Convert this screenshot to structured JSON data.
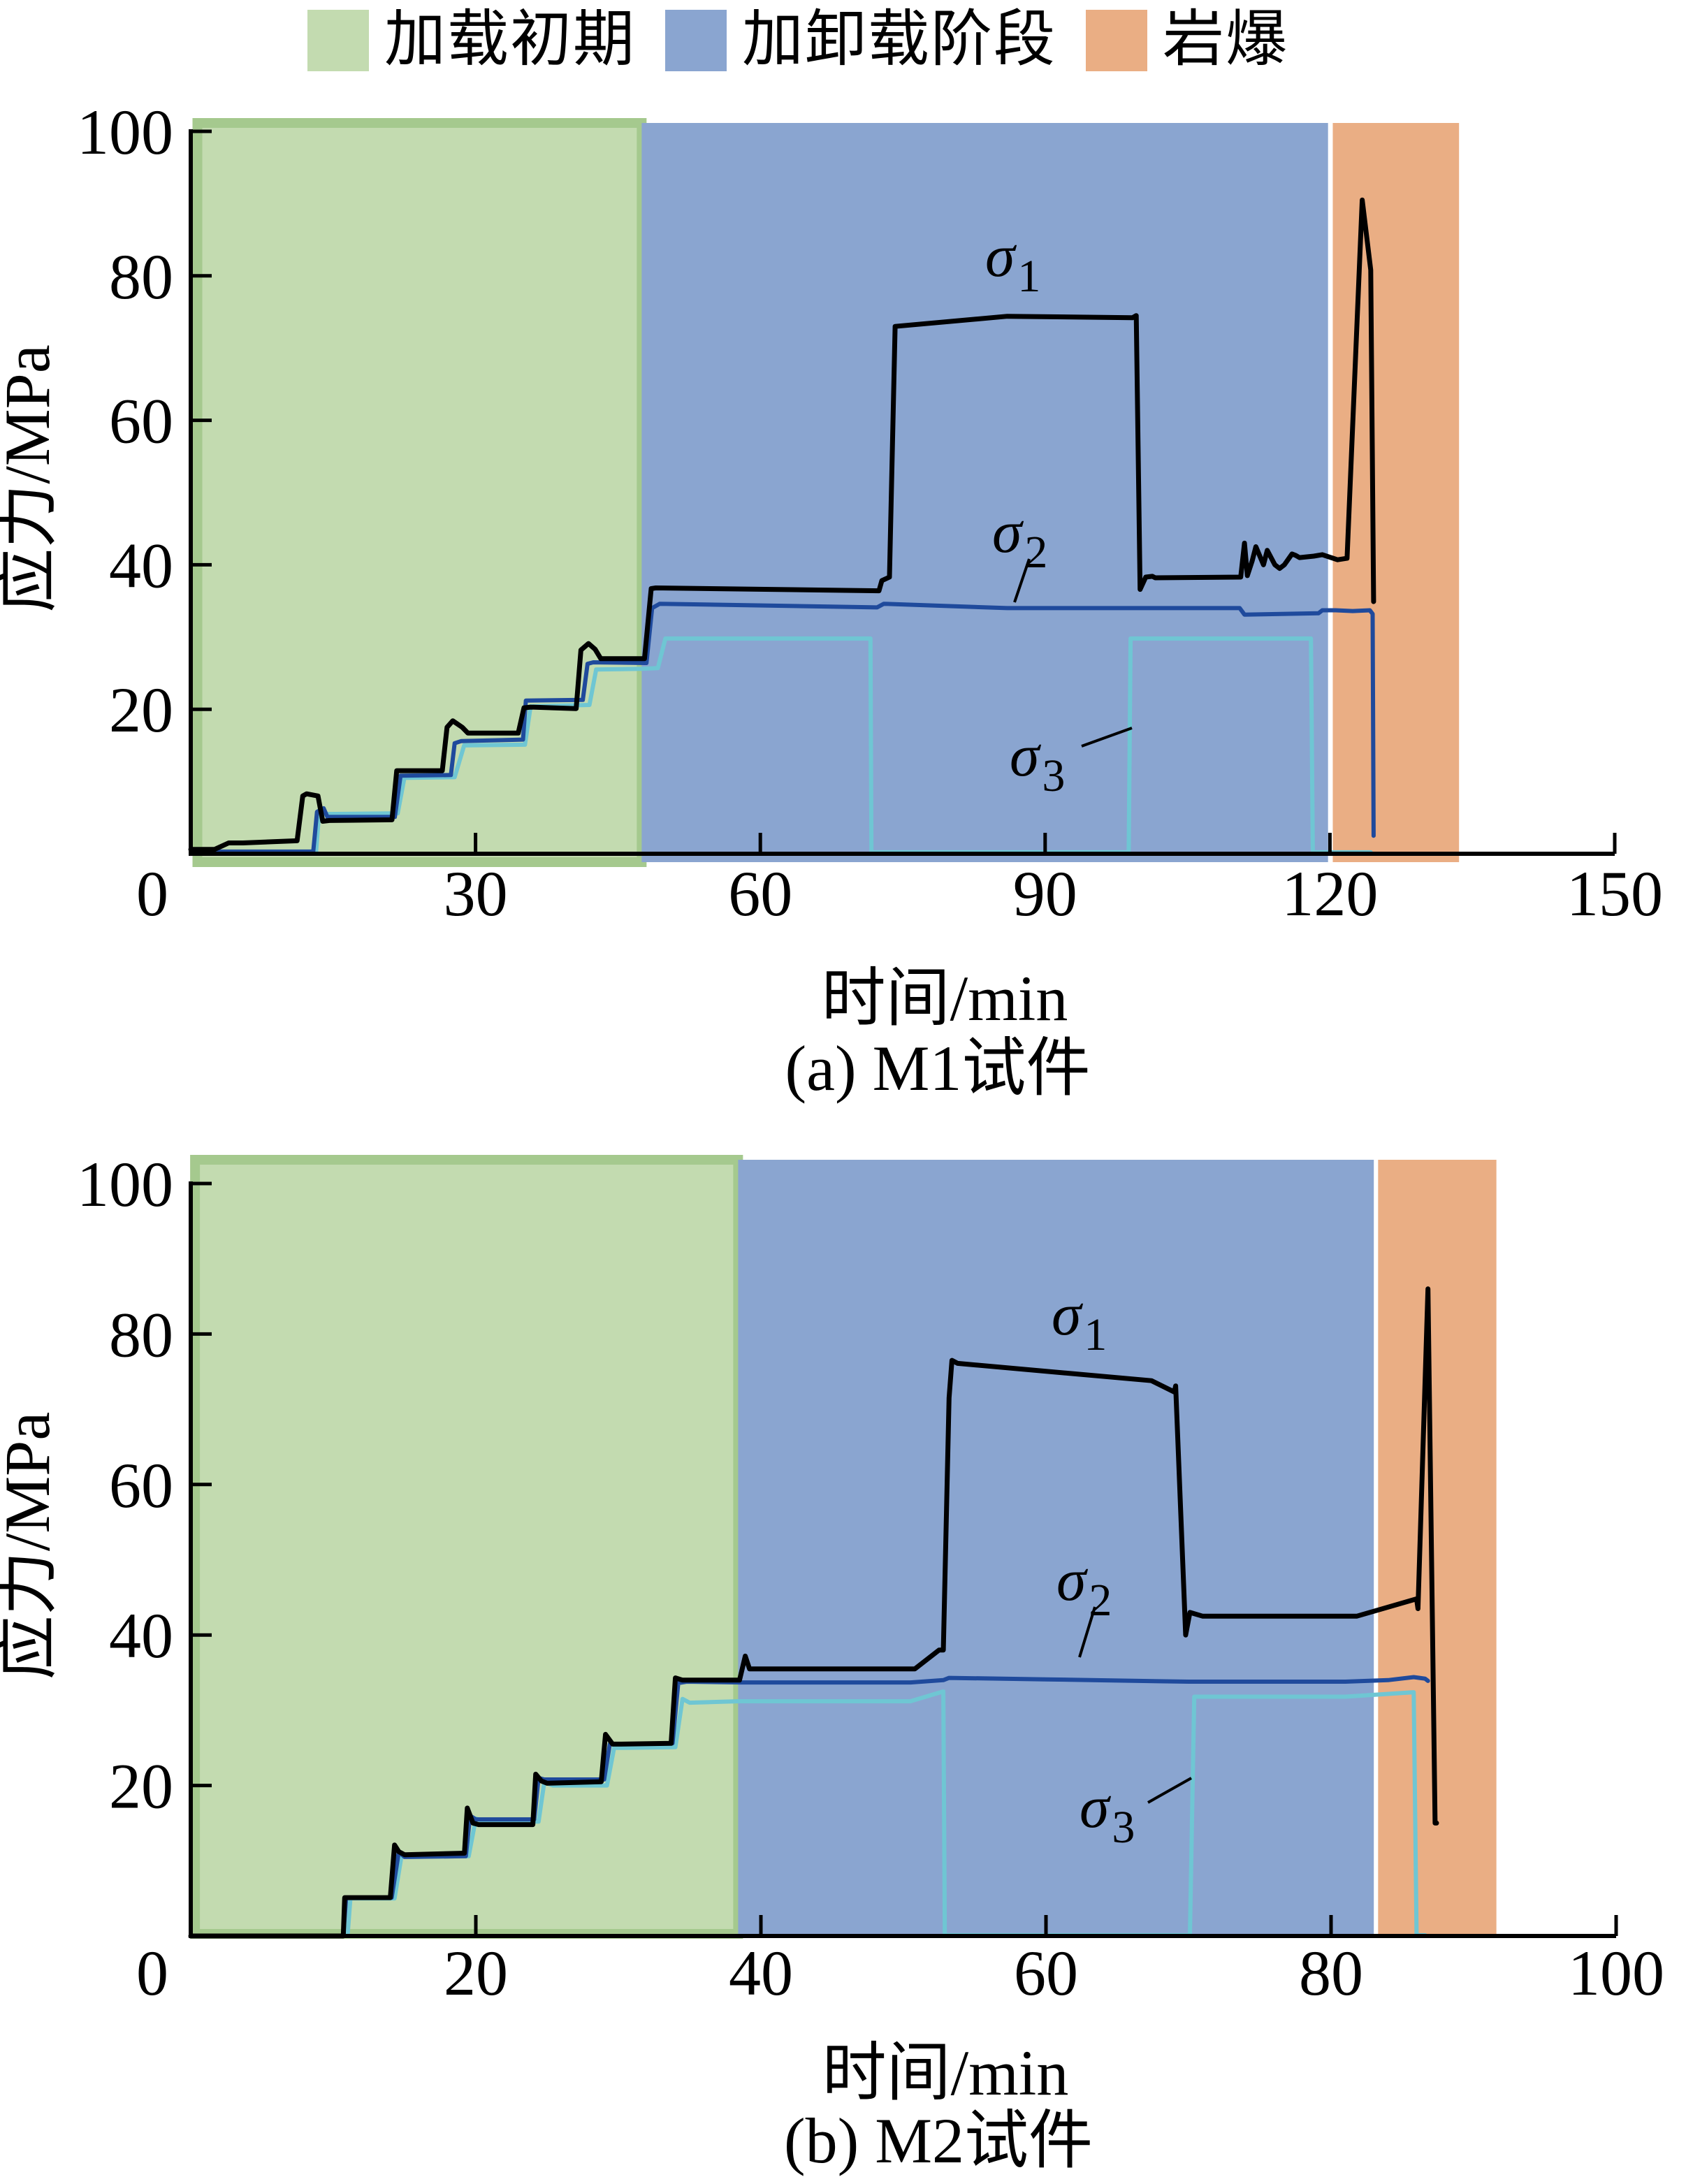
{
  "legend": {
    "items": [
      {
        "label": "加载初期",
        "color": "#c3dbb0"
      },
      {
        "label": "加卸载阶段",
        "color": "#8aa5d0"
      },
      {
        "label": "岩爆",
        "color": "#eaae84"
      }
    ]
  },
  "colors": {
    "sigma1": "#000000",
    "sigma2": "#1f4a9c",
    "sigma3": "#6fc6d3",
    "green_band_edge": "#a5c98e",
    "axis": "#000000"
  },
  "chart_data": [
    {
      "type": "line",
      "caption": "(a)  M1试件",
      "xlabel": "时间/min",
      "ylabel": "应力/MPa",
      "xlim": [
        0,
        150
      ],
      "ylim": [
        0,
        100
      ],
      "xticks": [
        "0",
        "30",
        "60",
        "90",
        "120",
        "150"
      ],
      "xtick_values": [
        0,
        30,
        60,
        90,
        120,
        150
      ],
      "yticks": [
        "20",
        "40",
        "60",
        "80",
        "100"
      ],
      "ytick_values": [
        20,
        40,
        60,
        80,
        100
      ],
      "zero_label": "0",
      "phases": [
        {
          "name": "加载初期",
          "start": 0.7,
          "end": 47.5
        },
        {
          "name": "加卸载阶段",
          "start": 47.5,
          "end": 119.8
        },
        {
          "name": "岩爆",
          "start": 120.3,
          "end": 133.6
        }
      ],
      "annotations": [
        {
          "symbol": "σ",
          "sub": "1",
          "series": "sigma1"
        },
        {
          "symbol": "σ",
          "sub": "2",
          "series": "sigma2"
        },
        {
          "symbol": "σ",
          "sub": "3",
          "series": "sigma3"
        }
      ],
      "series": [
        {
          "name": "σ1",
          "key": "sigma1",
          "x": [
            0,
            2.5,
            4,
            5.5,
            11.2,
            11.8,
            12.2,
            13.4,
            13.9,
            14.6,
            21.2,
            21.7,
            22.6,
            26.5,
            27.0,
            27.6,
            28.6,
            29.2,
            34.5,
            35.1,
            35.8,
            40.6,
            41.1,
            41.9,
            42.6,
            43.2,
            47.8,
            48.5,
            49.0,
            72.5,
            72.8,
            73.6,
            74.2,
            86,
            99.2,
            99.6,
            100.0,
            100.6,
            101.3,
            101.6,
            110.6,
            111.0,
            111.3,
            111.8,
            112.2,
            113.0,
            113.4,
            114.2,
            114.7,
            115.2,
            116.0,
            116.4,
            116.8,
            118.3,
            119.2,
            120.8,
            121.8,
            123.4,
            124.3,
            124.6
          ],
          "y": [
            0.6,
            0.6,
            1.5,
            1.5,
            1.8,
            8.0,
            8.3,
            8.0,
            4.5,
            4.6,
            4.7,
            11.5,
            11.5,
            11.5,
            17.5,
            18.4,
            17.5,
            16.7,
            16.7,
            20.2,
            20.3,
            20.1,
            28.2,
            29.1,
            28.3,
            27.0,
            27.0,
            36.7,
            36.8,
            36.4,
            37.8,
            38.3,
            73.0,
            74.4,
            74.2,
            74.5,
            36.6,
            38.3,
            38.4,
            38.2,
            38.3,
            43.0,
            38.5,
            40.5,
            42.5,
            40.0,
            42.0,
            40.0,
            39.5,
            40.0,
            41.5,
            41.3,
            41.0,
            41.2,
            41.4,
            40.7,
            40.9,
            90.5,
            80.8,
            34.9
          ]
        },
        {
          "name": "σ2",
          "key": "sigma2",
          "x": [
            0,
            12.9,
            13.3,
            14.0,
            14.4,
            21.5,
            22.1,
            27.4,
            27.8,
            28.5,
            35.0,
            35.3,
            41.3,
            41.8,
            42.4,
            48.0,
            48.6,
            49.4,
            72.3,
            73.0,
            86,
            99.5,
            110.5,
            111.0,
            118.8,
            119.2,
            120.6,
            122.4,
            124.2,
            124.5,
            124.6
          ],
          "y": [
            0.3,
            0.3,
            5.8,
            6.3,
            5.1,
            5.1,
            10.8,
            10.9,
            15.3,
            15.6,
            15.8,
            21.2,
            21.3,
            26.3,
            26.5,
            26.4,
            34.0,
            34.6,
            34.1,
            34.6,
            34.0,
            34.0,
            34.0,
            33.1,
            33.3,
            33.7,
            33.7,
            33.6,
            33.7,
            33.2,
            2.5
          ]
        },
        {
          "name": "σ3",
          "key": "sigma3",
          "x": [
            0,
            13.2,
            13.5,
            14.3,
            21.8,
            22.5,
            27.8,
            28.8,
            35.2,
            35.8,
            42.0,
            42.7,
            47.5,
            49.2,
            50.0,
            71.6,
            71.7,
            98.8,
            99.0,
            118.0,
            118.2,
            120.8,
            124.3
          ],
          "y": [
            0.2,
            0.2,
            5.3,
            5.5,
            5.6,
            10.5,
            10.6,
            15.0,
            15.1,
            20.4,
            20.6,
            25.5,
            25.6,
            25.7,
            29.8,
            29.8,
            0.2,
            0.2,
            29.8,
            29.8,
            0.2,
            0.2,
            0.2
          ]
        }
      ]
    },
    {
      "type": "line",
      "caption": "(b)  M2试件",
      "xlabel": "时间/min",
      "ylabel": "应力/MPa",
      "xlim": [
        0,
        100
      ],
      "ylim": [
        0,
        100
      ],
      "xticks": [
        "0",
        "20",
        "40",
        "60",
        "80",
        "100"
      ],
      "xtick_values": [
        0,
        20,
        40,
        60,
        80,
        100
      ],
      "yticks": [
        "20",
        "40",
        "60",
        "80",
        "100"
      ],
      "ytick_values": [
        20,
        40,
        60,
        80,
        100
      ],
      "zero_label": "0",
      "phases": [
        {
          "name": "加载初期",
          "start": 0.3,
          "end": 38.4
        },
        {
          "name": "加卸载阶段",
          "start": 38.4,
          "end": 83.0
        },
        {
          "name": "岩爆",
          "start": 83.3,
          "end": 91.6
        }
      ],
      "annotations": [
        {
          "symbol": "σ",
          "sub": "1",
          "series": "sigma1"
        },
        {
          "symbol": "σ",
          "sub": "2",
          "series": "sigma2"
        },
        {
          "symbol": "σ",
          "sub": "3",
          "series": "sigma3"
        }
      ],
      "series": [
        {
          "name": "σ1",
          "key": "sigma1",
          "x": [
            0,
            10.7,
            10.8,
            14.0,
            14.3,
            14.6,
            15.0,
            19.2,
            19.4,
            19.8,
            20.2,
            24.0,
            24.2,
            24.6,
            25.0,
            28.8,
            29.1,
            29.6,
            30.2,
            33.7,
            34.0,
            34.5,
            38.5,
            38.9,
            39.2,
            39.8,
            50.8,
            52.5,
            52.8,
            53.2,
            53.4,
            53.8,
            67.4,
            69.0,
            69.1,
            69.8,
            70.1,
            71.0,
            81.8,
            86.0,
            86.1,
            86.8,
            87.3,
            87.4
          ],
          "y": [
            0,
            0,
            5.1,
            5.1,
            12.1,
            11.2,
            10.8,
            11.0,
            17.0,
            15.0,
            14.8,
            14.8,
            21.5,
            20.6,
            20.3,
            20.5,
            26.8,
            25.5,
            25.5,
            25.6,
            34.3,
            34.0,
            34.0,
            37.2,
            35.5,
            35.5,
            35.5,
            38.0,
            38.0,
            71.5,
            76.5,
            76.1,
            73.8,
            72.3,
            73.1,
            40.0,
            43.0,
            42.5,
            42.5,
            44.8,
            43.5,
            86.0,
            15.0,
            15.0
          ]
        },
        {
          "name": "σ2",
          "key": "sigma2",
          "x": [
            0,
            10.7,
            10.9,
            14.1,
            14.6,
            15.0,
            19.3,
            19.6,
            20.0,
            24.1,
            24.4,
            24.8,
            29.0,
            29.4,
            29.8,
            33.8,
            34.2,
            34.8,
            38.5,
            50.5,
            52.8,
            53.2,
            60,
            70.0,
            81.0,
            84.0,
            85.8,
            86.6,
            86.8
          ],
          "y": [
            0,
            0,
            5.1,
            5.1,
            11.2,
            10.5,
            10.6,
            16.0,
            15.5,
            15.5,
            21.0,
            20.8,
            20.8,
            25.5,
            25.5,
            25.6,
            33.6,
            33.8,
            33.7,
            33.7,
            34.0,
            34.3,
            34.1,
            33.8,
            33.8,
            34.0,
            34.4,
            34.2,
            33.9
          ]
        },
        {
          "name": "σ3",
          "key": "sigma3",
          "x": [
            0,
            11.0,
            11.2,
            14.3,
            14.8,
            15.4,
            19.5,
            20.0,
            20.6,
            24.4,
            24.8,
            25.4,
            29.2,
            29.7,
            30.4,
            34.0,
            34.5,
            35.0,
            38.5,
            50.5,
            52.8,
            52.9,
            70.1,
            70.4,
            81.0,
            85.8,
            86.0,
            86.6
          ],
          "y": [
            0,
            0,
            5.0,
            5.0,
            10.8,
            10.5,
            10.6,
            15.6,
            15.2,
            15.2,
            20.4,
            20.0,
            20.0,
            25.0,
            25.0,
            25.1,
            31.5,
            31.0,
            31.2,
            31.2,
            32.5,
            0.1,
            0.1,
            31.8,
            31.8,
            32.4,
            0.1,
            0.1
          ]
        }
      ]
    }
  ]
}
